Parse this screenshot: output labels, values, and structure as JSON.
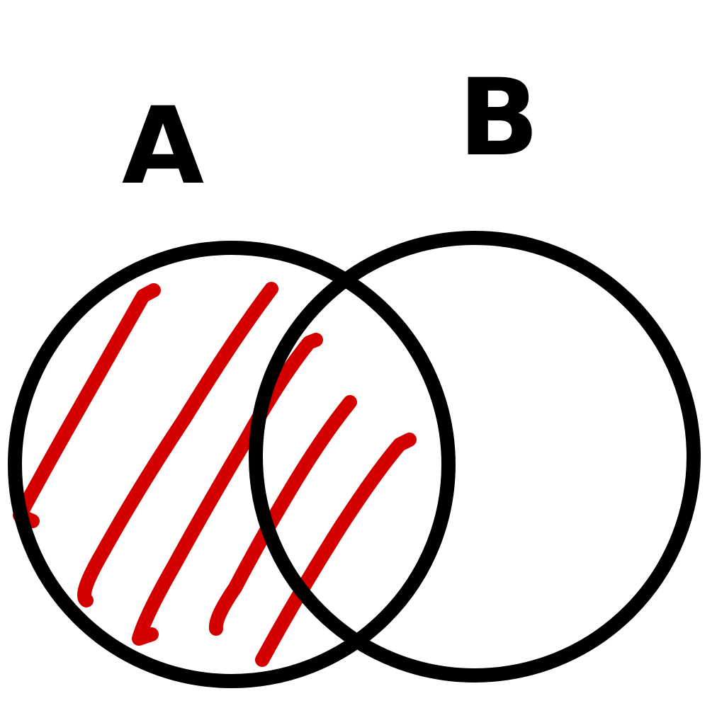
{
  "diagram": {
    "type": "venn",
    "sets": [
      {
        "id": "A",
        "label": "A",
        "shaded": true
      },
      {
        "id": "B",
        "label": "B",
        "shaded": false
      }
    ],
    "colors": {
      "outline": "#000000",
      "shading": "#d40000",
      "background": "#ffffff"
    }
  }
}
